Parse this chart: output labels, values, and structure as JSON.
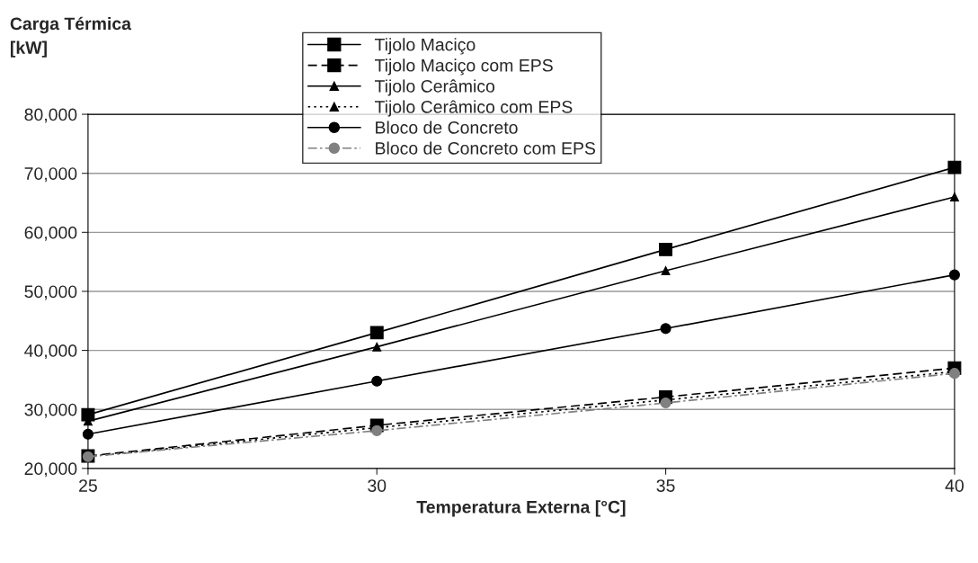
{
  "chart_data": {
    "type": "line",
    "ylabel": "Carga Térmica\n[kW]",
    "xlabel": "Temperatura Externa [°C]",
    "x": [
      25,
      30,
      35,
      40
    ],
    "series": [
      {
        "name": "Tijolo Maciço",
        "color": "#000000",
        "marker": "square",
        "line_style": "solid",
        "values": [
          29100,
          43000,
          57100,
          71000
        ]
      },
      {
        "name": "Tijolo Maciço com EPS",
        "color": "#000000",
        "marker": "square",
        "line_style": "dashed",
        "values": [
          22100,
          27300,
          32100,
          37000
        ]
      },
      {
        "name": "Tijolo Cerâmico",
        "color": "#000000",
        "marker": "triangle",
        "line_style": "solid",
        "values": [
          28000,
          40600,
          53500,
          66000
        ]
      },
      {
        "name": "Tijolo Cerâmico com EPS",
        "color": "#000000",
        "marker": "triangle",
        "line_style": "dotted",
        "values": [
          22000,
          26900,
          31600,
          36400
        ]
      },
      {
        "name": "Bloco de Concreto",
        "color": "#000000",
        "marker": "circle",
        "line_style": "solid",
        "values": [
          25800,
          34800,
          43700,
          52800
        ]
      },
      {
        "name": "Bloco de Concreto com EPS",
        "color": "#808080",
        "marker": "circle",
        "line_style": "dashdot",
        "values": [
          22000,
          26400,
          31100,
          36100
        ]
      }
    ],
    "xlim": [
      25,
      40
    ],
    "xticks": [
      25,
      30,
      35,
      40
    ],
    "ylim": [
      20000,
      80000
    ],
    "yticks": [
      {
        "value": 20000,
        "label": "20,000"
      },
      {
        "value": 30000,
        "label": "30,000"
      },
      {
        "value": 40000,
        "label": "40,000"
      },
      {
        "value": 50000,
        "label": "50,000"
      },
      {
        "value": 60000,
        "label": "60,000"
      },
      {
        "value": 70000,
        "label": "70,000"
      },
      {
        "value": 80000,
        "label": "80,000"
      }
    ],
    "grid": "y",
    "legend": "top"
  }
}
